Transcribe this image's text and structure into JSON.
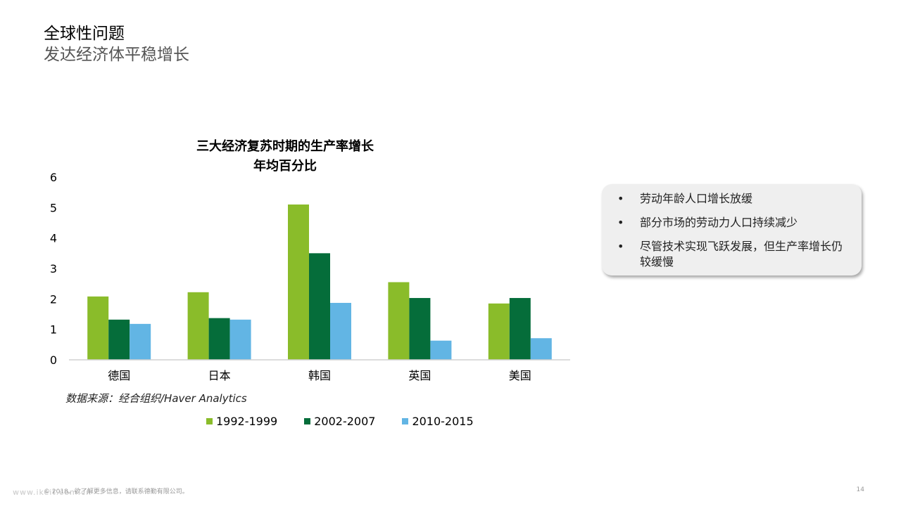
{
  "header": {
    "title": "全球性问题",
    "subtitle": "发达经济体平稳增长"
  },
  "chart_data": {
    "type": "bar",
    "title": "三大经济复苏时期的生产率增长",
    "subtitle": "年均百分比",
    "categories": [
      "德国",
      "日本",
      "韩国",
      "英国",
      "美国"
    ],
    "series": [
      {
        "name": "1992-1999",
        "color": "#8abc2a",
        "values": [
          2.08,
          2.22,
          5.1,
          2.55,
          1.85
        ]
      },
      {
        "name": "2002-2007",
        "color": "#056d3a",
        "values": [
          1.32,
          1.37,
          3.5,
          2.03,
          2.03
        ]
      },
      {
        "name": "2010-2015",
        "color": "#62b5e4",
        "values": [
          1.18,
          1.32,
          1.87,
          0.63,
          0.71
        ]
      }
    ],
    "ylim": [
      0,
      6
    ],
    "yticks": [
      "0",
      "1",
      "2",
      "3",
      "4",
      "5",
      "6"
    ],
    "grid": false,
    "legend": "bottom",
    "source": "数据来源：经合组织/Haver Analytics"
  },
  "callout": {
    "bullet_symbol": "•",
    "items": [
      "劳动年龄人口增长放缓",
      "部分市场的劳动力人口持续减少",
      "尽管技术实现飞跃发展，但生产率增长仍较缓慢"
    ]
  },
  "footer": {
    "copyright": "© 2018。欲了解更多信息，请联系德勤有限公司。",
    "watermark": "www.ikeit.com.cn",
    "page_number": "14"
  }
}
